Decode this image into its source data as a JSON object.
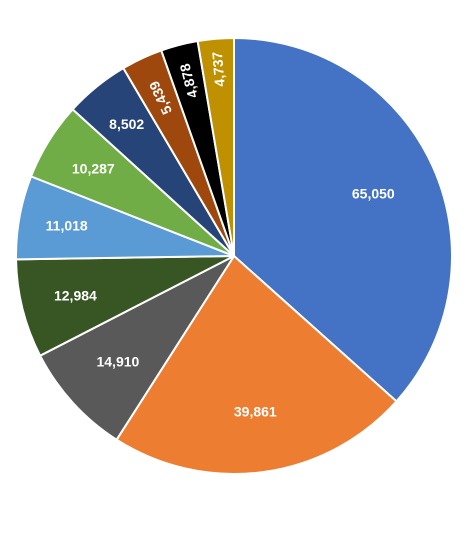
{
  "chart_data": {
    "type": "pie",
    "title": "",
    "values": [
      65050,
      39861,
      14910,
      12984,
      11018,
      10287,
      8502,
      5439,
      4878,
      4737
    ],
    "labels": [
      "65,050",
      "39,861",
      "14,910",
      "12,984",
      "11,018",
      "10,287",
      "8,502",
      "5,439",
      "4,878",
      "4,737"
    ],
    "colors": [
      "#4472C4",
      "#ED7D31",
      "#595959",
      "#375623",
      "#5B9BD5",
      "#70AD47",
      "#264478",
      "#9E480E",
      "#000000",
      "#BF9000"
    ],
    "legend": "none",
    "start_angle": "12 o'clock",
    "direction": "clockwise"
  }
}
